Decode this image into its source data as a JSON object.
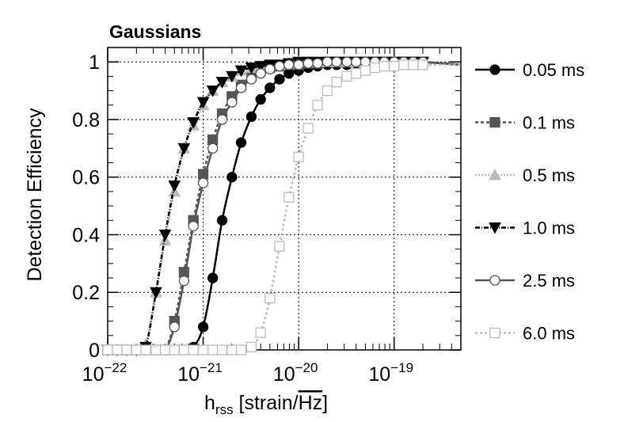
{
  "chart_data": {
    "type": "line",
    "title": "Gaussians",
    "xlabel": "h",
    "xlabel_sub": "rss",
    "xlabel_unit_open": " [strain/",
    "xlabel_unit_hz": "Hz",
    "xlabel_unit_close": "]",
    "ylabel": "Detection Efficiency",
    "xscale": "log",
    "xlim": [
      1e-22,
      5e-19
    ],
    "ylim": [
      0,
      1.05
    ],
    "grid": true,
    "legend_position": "right",
    "x_ticks": [
      {
        "value": 1e-22,
        "base": "10",
        "exp": "−22"
      },
      {
        "value": 1e-21,
        "base": "10",
        "exp": "−21"
      },
      {
        "value": 1e-20,
        "base": "10",
        "exp": "−20"
      },
      {
        "value": 1e-19,
        "base": "10",
        "exp": "−19"
      }
    ],
    "y_ticks": [
      {
        "value": 0,
        "label": "0"
      },
      {
        "value": 0.2,
        "label": "0.2"
      },
      {
        "value": 0.4,
        "label": "0.4"
      },
      {
        "value": 0.6,
        "label": "0.6"
      },
      {
        "value": 0.8,
        "label": "0.8"
      },
      {
        "value": 1,
        "label": "1"
      }
    ],
    "series": [
      {
        "name": "0.05 ms",
        "color": "#000000",
        "dash": "",
        "marker": "circle-filled",
        "x": [
          1e-22,
          1.26e-22,
          1.58e-22,
          2e-22,
          2.5e-22,
          3.2e-22,
          4e-22,
          5e-22,
          6.3e-22,
          7.9e-22,
          1e-21,
          1.26e-21,
          1.58e-21,
          2e-21,
          2.5e-21,
          3.2e-21,
          4e-21,
          5e-21,
          6.3e-21,
          7.9e-21,
          1e-20,
          1.26e-20,
          1.58e-20,
          2e-20,
          2.5e-20,
          3.2e-20,
          4e-20,
          5e-20,
          6.3e-20,
          7.9e-20,
          1e-19,
          1.26e-19,
          1.58e-19,
          2e-19
        ],
        "y": [
          0,
          0,
          0,
          0,
          0,
          0,
          0,
          0,
          0,
          0.01,
          0.08,
          0.25,
          0.45,
          0.6,
          0.72,
          0.81,
          0.87,
          0.91,
          0.94,
          0.96,
          0.97,
          0.98,
          0.985,
          0.99,
          0.99,
          0.99,
          0.995,
          0.995,
          0.995,
          0.995,
          1,
          1,
          1,
          1
        ]
      },
      {
        "name": "0.1 ms",
        "color": "#555555",
        "dash": "4,3",
        "marker": "square-filled",
        "x": [
          1e-22,
          1.26e-22,
          1.58e-22,
          2e-22,
          2.5e-22,
          3.2e-22,
          4e-22,
          5e-22,
          6.3e-22,
          7.9e-22,
          1e-21,
          1.26e-21,
          1.58e-21,
          2e-21,
          2.5e-21,
          3.2e-21,
          4e-21,
          5e-21,
          6.3e-21,
          7.9e-21,
          1e-20,
          1.26e-20,
          1.58e-20,
          2e-20,
          2.5e-20,
          3.2e-20,
          4e-20,
          5e-20,
          6.3e-20,
          7.9e-20,
          1e-19,
          1.26e-19,
          1.58e-19,
          2e-19
        ],
        "y": [
          0,
          0,
          0,
          0,
          0,
          0,
          0,
          0.1,
          0.27,
          0.45,
          0.61,
          0.73,
          0.82,
          0.88,
          0.92,
          0.95,
          0.97,
          0.98,
          0.985,
          0.99,
          0.99,
          0.995,
          0.995,
          1,
          1,
          1,
          1,
          1,
          1,
          1,
          1,
          1,
          1,
          1
        ]
      },
      {
        "name": "0.5 ms",
        "color": "#bbbbbb",
        "dash": "2,2",
        "marker": "triangle-up-filled",
        "x": [
          1e-22,
          1.26e-22,
          1.58e-22,
          2e-22,
          2.5e-22,
          3.2e-22,
          4e-22,
          5e-22,
          6.3e-22,
          7.9e-22,
          1e-21,
          1.26e-21,
          1.58e-21,
          2e-21,
          2.5e-21,
          3.2e-21,
          4e-21,
          5e-21,
          6.3e-21,
          7.9e-21,
          1e-20,
          1.26e-20,
          1.58e-20,
          2e-20,
          2.5e-20,
          3.2e-20,
          4e-20,
          5e-20,
          6.3e-20,
          7.9e-20,
          1e-19,
          1.26e-19,
          1.58e-19,
          2e-19
        ],
        "y": [
          0,
          0,
          0,
          0,
          0.02,
          0.2,
          0.38,
          0.55,
          0.7,
          0.78,
          0.85,
          0.9,
          0.93,
          0.95,
          0.97,
          0.98,
          0.985,
          0.99,
          0.99,
          0.995,
          1,
          1,
          1,
          1,
          1,
          1,
          1,
          1,
          1,
          1,
          1,
          1,
          1,
          1
        ]
      },
      {
        "name": "1.0 ms",
        "color": "#000000",
        "dash": "6,2,1,2",
        "marker": "triangle-down-filled",
        "x": [
          1e-22,
          1.26e-22,
          1.58e-22,
          2e-22,
          2.5e-22,
          3.2e-22,
          4e-22,
          5e-22,
          6.3e-22,
          7.9e-22,
          1e-21,
          1.26e-21,
          1.58e-21,
          2e-21,
          2.5e-21,
          3.2e-21,
          4e-21,
          5e-21,
          6.3e-21,
          7.9e-21,
          1e-20,
          1.26e-20,
          1.58e-20,
          2e-20,
          2.5e-20,
          3.2e-20,
          4e-20,
          5e-20,
          6.3e-20,
          7.9e-20,
          1e-19,
          1.26e-19,
          1.58e-19,
          2e-19
        ],
        "y": [
          0,
          0,
          0,
          0,
          0.01,
          0.2,
          0.4,
          0.57,
          0.7,
          0.79,
          0.86,
          0.9,
          0.93,
          0.95,
          0.97,
          0.98,
          0.985,
          0.99,
          0.99,
          0.995,
          1,
          1,
          1,
          1,
          1,
          1,
          1,
          1,
          1,
          1,
          1,
          1,
          1,
          1
        ]
      },
      {
        "name": "2.5 ms",
        "color": "#555555",
        "dash": "",
        "marker": "circle-open",
        "x": [
          1e-22,
          1.26e-22,
          1.58e-22,
          2e-22,
          2.5e-22,
          3.2e-22,
          4e-22,
          5e-22,
          6.3e-22,
          7.9e-22,
          1e-21,
          1.26e-21,
          1.58e-21,
          2e-21,
          2.5e-21,
          3.2e-21,
          4e-21,
          5e-21,
          6.3e-21,
          7.9e-21,
          1e-20,
          1.26e-20,
          1.58e-20,
          2e-20,
          2.5e-20,
          3.2e-20,
          4e-20,
          5e-20,
          6.3e-20,
          7.9e-20,
          1e-19,
          1.26e-19,
          1.58e-19,
          2e-19
        ],
        "y": [
          0,
          0,
          0,
          0,
          0,
          0,
          0,
          0.08,
          0.24,
          0.43,
          0.58,
          0.7,
          0.8,
          0.86,
          0.91,
          0.94,
          0.96,
          0.975,
          0.985,
          0.99,
          0.99,
          0.995,
          0.995,
          1,
          1,
          1,
          1,
          1,
          1,
          1,
          1,
          1,
          1,
          1
        ]
      },
      {
        "name": "6.0 ms",
        "color": "#bbbbbb",
        "dash": "3,3",
        "marker": "square-open",
        "x": [
          1e-22,
          1.26e-22,
          1.58e-22,
          2e-22,
          2.5e-22,
          3.2e-22,
          4e-22,
          5e-22,
          6.3e-22,
          7.9e-22,
          1e-21,
          1.26e-21,
          1.58e-21,
          2e-21,
          2.5e-21,
          3.2e-21,
          4e-21,
          5e-21,
          6.3e-21,
          7.9e-21,
          1e-20,
          1.26e-20,
          1.58e-20,
          2e-20,
          2.5e-20,
          3.2e-20,
          4e-20,
          5e-20,
          6.3e-20,
          7.9e-20,
          1e-19,
          1.26e-19,
          1.58e-19,
          2e-19
        ],
        "y": [
          0,
          0,
          0,
          0,
          0,
          0,
          0,
          0,
          0,
          0,
          0,
          0,
          0,
          0,
          0,
          0.01,
          0.06,
          0.18,
          0.36,
          0.53,
          0.67,
          0.77,
          0.85,
          0.9,
          0.93,
          0.95,
          0.96,
          0.97,
          0.98,
          0.985,
          0.985,
          0.99,
          0.99,
          0.99
        ]
      }
    ]
  }
}
